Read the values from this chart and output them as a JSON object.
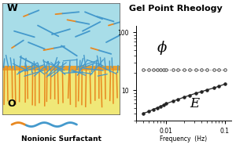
{
  "title": "Gel Point Rheology",
  "left_panel": {
    "water_color": "#a8dde8",
    "oil_color": "#f0e878",
    "W_label": "W",
    "O_label": "O",
    "blue_color": "#4499cc",
    "orange_color": "#e88820"
  },
  "legend": {
    "surfactant_label": "Nonionic Surfactant",
    "orange_color": "#e88820",
    "blue_color": "#4499cc"
  },
  "right_panel": {
    "phi_label": "ϕ",
    "E_label": "E",
    "xlabel": "Frequency  (Hz)",
    "phi_x": [
      0.004,
      0.005,
      0.006,
      0.007,
      0.008,
      0.009,
      0.01,
      0.013,
      0.016,
      0.02,
      0.025,
      0.032,
      0.04,
      0.05,
      0.065,
      0.08,
      0.1
    ],
    "phi_y": [
      23,
      23,
      23,
      23,
      23,
      23,
      23,
      23,
      23,
      23,
      23,
      23,
      23,
      23,
      23,
      23,
      23
    ],
    "E_x": [
      0.004,
      0.005,
      0.006,
      0.007,
      0.008,
      0.009,
      0.01,
      0.013,
      0.016,
      0.02,
      0.025,
      0.032,
      0.04,
      0.05,
      0.065,
      0.08,
      0.1
    ],
    "E_y": [
      4.0,
      4.3,
      4.7,
      5.0,
      5.3,
      5.6,
      5.9,
      6.5,
      7.0,
      7.6,
      8.2,
      8.9,
      9.5,
      10.2,
      11.0,
      11.8,
      12.8
    ],
    "xlim": [
      0.003,
      0.13
    ],
    "ylim": [
      3,
      130
    ],
    "xticks": [
      0.01,
      0.1
    ],
    "xtick_labels": [
      "0.01",
      "0.1"
    ],
    "yticks": [
      10,
      100
    ],
    "ytick_labels": [
      "10",
      "100"
    ]
  }
}
